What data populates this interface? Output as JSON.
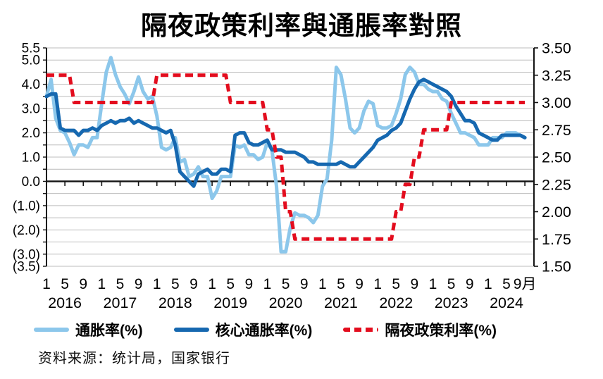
{
  "title": "隔夜政策利率與通脹率對照",
  "source": "资料来源：统计局，国家银行",
  "legend": [
    {
      "label": "通胀率(%)",
      "color": "#8CC7EB",
      "style": "solid"
    },
    {
      "label": "核心通胀率(%)",
      "color": "#1668B0",
      "style": "solid"
    },
    {
      "label": "隔夜政策利率(%)",
      "color": "#E30D1E",
      "style": "dashed"
    }
  ],
  "chart_data": {
    "type": "line",
    "title": "隔夜政策利率與通脹率對照",
    "x_start": "2016-01",
    "x_end": "2024-09",
    "x_tick_months": [
      1,
      5,
      9
    ],
    "x_last_tick_label": "9月",
    "years": [
      "2016",
      "2017",
      "2018",
      "2019",
      "2020",
      "2021",
      "2022",
      "2023",
      "2024"
    ],
    "grid": true,
    "legend_position": "bottom",
    "left_axis": {
      "min": -3.5,
      "max": 5.5,
      "grid_step": 0.5,
      "ticks": [
        {
          "label": "5.5",
          "value": 5.5
        },
        {
          "label": "5.0",
          "value": 5.0
        },
        {
          "label": "4.0",
          "value": 4.0
        },
        {
          "label": "3.0",
          "value": 3.0
        },
        {
          "label": "2.0",
          "value": 2.0
        },
        {
          "label": "1.0",
          "value": 1.0
        },
        {
          "label": "0.0",
          "value": 0.0
        },
        {
          "label": "(1.0)",
          "value": -1.0
        },
        {
          "label": "(2.0)",
          "value": -2.0
        },
        {
          "label": "(3.0)",
          "value": -3.0
        },
        {
          "label": "(3.5)",
          "value": -3.5
        }
      ]
    },
    "right_axis": {
      "min": 1.5,
      "max": 3.5,
      "ticks": [
        {
          "label": "3.50",
          "value": 3.5
        },
        {
          "label": "3.25",
          "value": 3.25
        },
        {
          "label": "3.00",
          "value": 3.0
        },
        {
          "label": "2.75",
          "value": 2.75
        },
        {
          "label": "2.50",
          "value": 2.5
        },
        {
          "label": "2.25",
          "value": 2.25
        },
        {
          "label": "2.00",
          "value": 2.0
        },
        {
          "label": "1.75",
          "value": 1.75
        },
        {
          "label": "1.50",
          "value": 1.5
        }
      ]
    },
    "series": [
      {
        "name": "通胀率(%)",
        "axis": "left",
        "color": "#8CC7EB",
        "style": "solid",
        "values": [
          3.5,
          4.2,
          2.6,
          2.1,
          2.0,
          1.6,
          1.1,
          1.5,
          1.5,
          1.4,
          1.8,
          1.8,
          3.2,
          4.5,
          5.1,
          4.4,
          3.9,
          3.6,
          3.2,
          3.7,
          4.3,
          3.7,
          3.4,
          3.5,
          2.7,
          1.4,
          1.3,
          1.4,
          1.8,
          0.8,
          0.9,
          0.2,
          0.3,
          0.6,
          0.2,
          0.2,
          -0.7,
          -0.4,
          0.2,
          0.2,
          0.2,
          1.5,
          1.4,
          1.5,
          1.1,
          1.1,
          0.9,
          1.0,
          1.6,
          1.3,
          -0.2,
          -2.9,
          -2.9,
          -1.9,
          -1.3,
          -1.4,
          -1.4,
          -1.5,
          -1.7,
          -1.4,
          -0.2,
          0.1,
          1.7,
          4.7,
          4.4,
          3.4,
          2.2,
          2.0,
          2.2,
          2.9,
          3.3,
          3.2,
          2.3,
          2.2,
          2.2,
          2.3,
          2.8,
          3.4,
          4.4,
          4.7,
          4.5,
          4.0,
          4.0,
          3.8,
          3.7,
          3.7,
          3.4,
          3.3,
          2.8,
          2.4,
          2.0,
          2.0,
          1.9,
          1.8,
          1.5,
          1.5,
          1.5,
          1.8,
          1.8,
          1.8,
          2.0,
          2.0,
          2.0,
          1.9,
          1.8
        ]
      },
      {
        "name": "核心通胀率(%)",
        "axis": "left",
        "color": "#1668B0",
        "style": "solid",
        "values": [
          3.5,
          3.6,
          3.6,
          2.2,
          2.1,
          2.1,
          2.1,
          1.9,
          2.1,
          2.1,
          2.2,
          2.1,
          2.3,
          2.4,
          2.5,
          2.4,
          2.5,
          2.5,
          2.6,
          2.4,
          2.5,
          2.4,
          2.3,
          2.2,
          2.2,
          2.1,
          2.0,
          2.1,
          1.5,
          0.4,
          0.2,
          0.0,
          -0.2,
          0.3,
          0.4,
          0.5,
          0.3,
          0.3,
          0.5,
          0.5,
          0.4,
          1.9,
          2.0,
          2.0,
          1.6,
          1.5,
          1.5,
          1.6,
          1.7,
          1.3,
          1.3,
          1.3,
          1.2,
          1.2,
          1.2,
          1.1,
          1.0,
          0.8,
          0.8,
          0.7,
          0.7,
          0.7,
          0.7,
          0.7,
          0.8,
          0.7,
          0.6,
          0.6,
          0.8,
          1.0,
          1.2,
          1.4,
          1.7,
          1.8,
          1.9,
          2.1,
          2.2,
          2.4,
          2.9,
          3.4,
          3.8,
          4.1,
          4.2,
          4.1,
          4.0,
          3.9,
          3.8,
          3.7,
          3.5,
          3.1,
          2.8,
          2.5,
          2.5,
          2.4,
          2.0,
          1.9,
          1.8,
          1.7,
          1.7,
          1.9,
          1.9,
          1.9,
          1.9,
          1.9,
          1.8
        ]
      },
      {
        "name": "隔夜政策利率(%)",
        "axis": "right",
        "color": "#E30D1E",
        "style": "dashed",
        "values": [
          3.25,
          3.25,
          3.25,
          3.25,
          3.25,
          3.25,
          3.0,
          3.0,
          3.0,
          3.0,
          3.0,
          3.0,
          3.0,
          3.0,
          3.0,
          3.0,
          3.0,
          3.0,
          3.0,
          3.0,
          3.0,
          3.0,
          3.0,
          3.0,
          3.25,
          3.25,
          3.25,
          3.25,
          3.25,
          3.25,
          3.25,
          3.25,
          3.25,
          3.25,
          3.25,
          3.25,
          3.25,
          3.25,
          3.25,
          3.25,
          3.0,
          3.0,
          3.0,
          3.0,
          3.0,
          3.0,
          3.0,
          3.0,
          2.75,
          2.75,
          2.5,
          2.5,
          2.0,
          2.0,
          1.75,
          1.75,
          1.75,
          1.75,
          1.75,
          1.75,
          1.75,
          1.75,
          1.75,
          1.75,
          1.75,
          1.75,
          1.75,
          1.75,
          1.75,
          1.75,
          1.75,
          1.75,
          1.75,
          1.75,
          1.75,
          1.75,
          2.0,
          2.0,
          2.25,
          2.25,
          2.5,
          2.5,
          2.75,
          2.75,
          2.75,
          2.75,
          2.75,
          2.75,
          3.0,
          3.0,
          3.0,
          3.0,
          3.0,
          3.0,
          3.0,
          3.0,
          3.0,
          3.0,
          3.0,
          3.0,
          3.0,
          3.0,
          3.0,
          3.0,
          3.0
        ]
      }
    ]
  }
}
